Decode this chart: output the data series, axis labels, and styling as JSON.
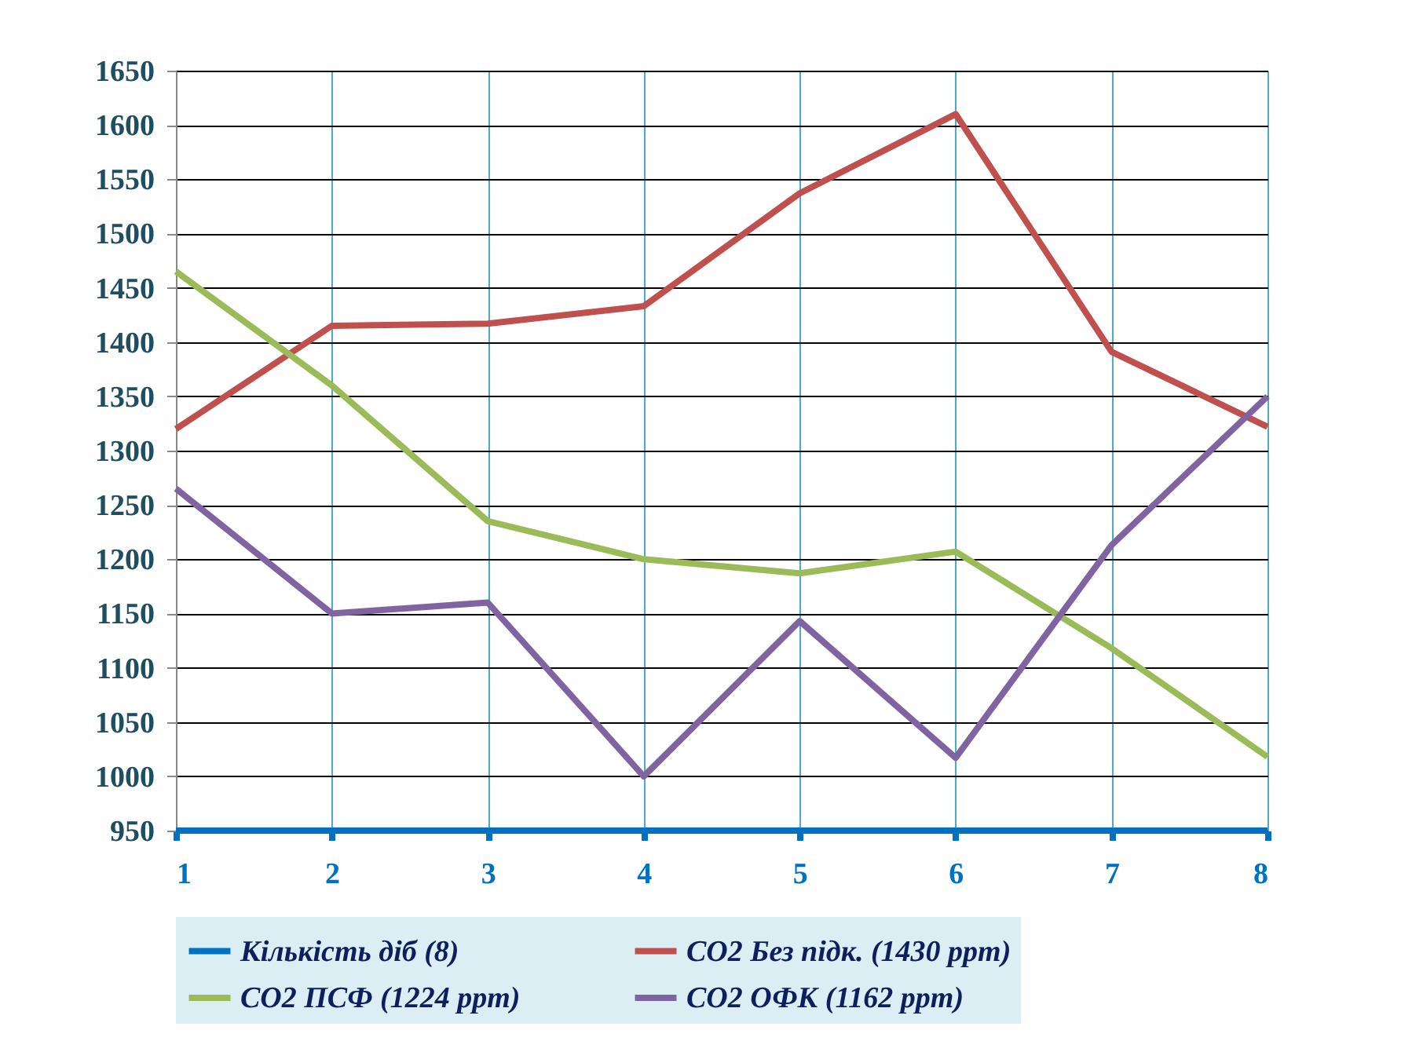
{
  "chart_data": {
    "type": "line",
    "x": [
      1,
      2,
      3,
      4,
      5,
      6,
      7,
      8
    ],
    "xlim": [
      1,
      8
    ],
    "xticks": [
      1,
      2,
      3,
      4,
      5,
      6,
      7,
      8
    ],
    "ylim": [
      950,
      1650
    ],
    "yticks": [
      950,
      1000,
      1050,
      1100,
      1150,
      1200,
      1250,
      1300,
      1350,
      1400,
      1450,
      1500,
      1550,
      1600,
      1650
    ],
    "grid": true,
    "legend": "bottom",
    "series": [
      {
        "name": "Кількість  діб (8)",
        "color": "#0070c0",
        "values": [
          950,
          950,
          950,
          950,
          950,
          950,
          950,
          950
        ]
      },
      {
        "name": "CO2 Без підк. (1430 ppm)",
        "color": "#c0504d",
        "values": [
          1320,
          1415,
          1417,
          1433,
          1537,
          1610,
          1391,
          1322
        ]
      },
      {
        "name": "CO2  ПСФ (1224 ppm)",
        "color": "#9bbb59",
        "values": [
          1465,
          1360,
          1235,
          1200,
          1187,
          1207,
          1118,
          1018
        ]
      },
      {
        "name": "CO2  ОФК (1162 ppm)",
        "color": "#8064a2",
        "values": [
          1265,
          1150,
          1160,
          1000,
          1143,
          1017,
          1213,
          1350
        ]
      }
    ]
  }
}
